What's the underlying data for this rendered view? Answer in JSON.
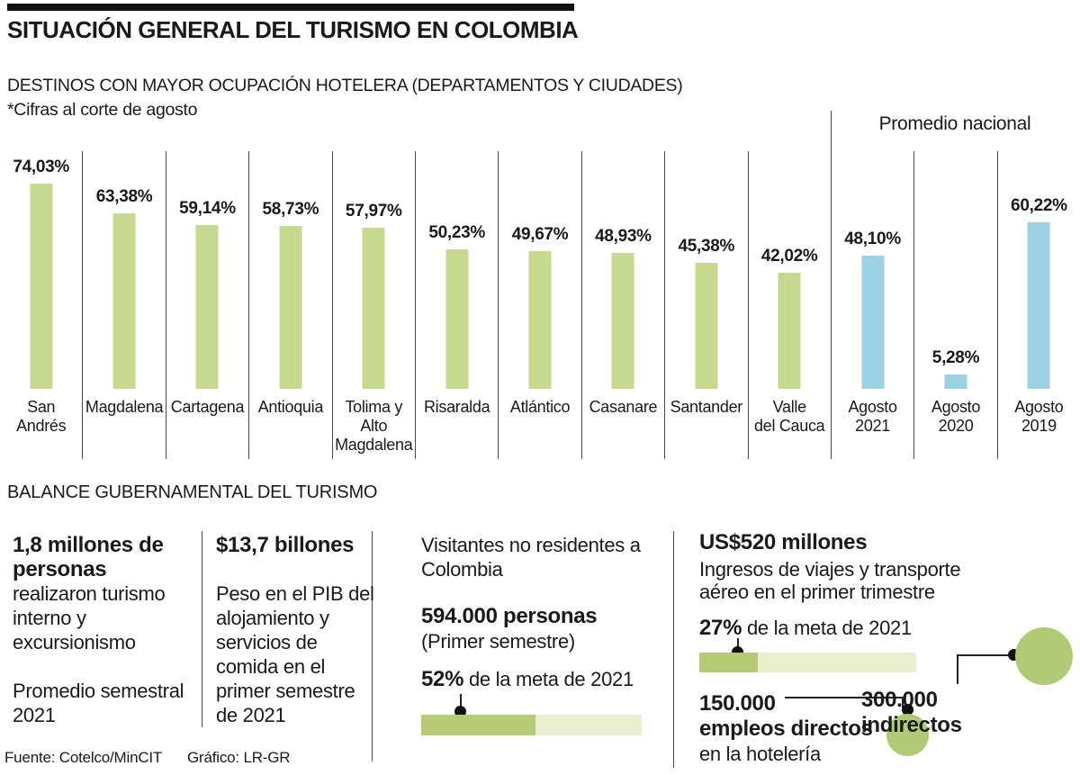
{
  "header": {
    "title": "SITUACIÓN GENERAL DEL TURISMO EN COLOMBIA",
    "subtitle": "DESTINOS CON MAYOR OCUPACIÓN HOTELERA (DEPARTAMENTOS Y CIUDADES)",
    "note": "*Cifras al corte de agosto"
  },
  "chart_data": {
    "type": "bar",
    "unit": "%",
    "ylim": [
      0,
      80
    ],
    "destinations": {
      "categories": [
        [
          "San",
          "Andrés"
        ],
        [
          "Magdalena"
        ],
        [
          "Cartagena"
        ],
        [
          "Antioquia"
        ],
        [
          "Tolima y",
          "Alto",
          "Magdalena"
        ],
        [
          "Risaralda"
        ],
        [
          "Atlántico"
        ],
        [
          "Casanare"
        ],
        [
          "Santander"
        ],
        [
          "Valle",
          "del Cauca"
        ]
      ],
      "values": [
        74.03,
        63.38,
        59.14,
        58.73,
        57.97,
        50.23,
        49.67,
        48.93,
        45.38,
        42.02
      ],
      "labels": [
        "74,03%",
        "63,38%",
        "59,14%",
        "58,73%",
        "57,97%",
        "50,23%",
        "49,67%",
        "48,93%",
        "45,38%",
        "42,02%"
      ]
    },
    "promedio_nacional": {
      "label": "Promedio nacional",
      "categories": [
        [
          "Agosto",
          "2021"
        ],
        [
          "Agosto",
          "2020"
        ],
        [
          "Agosto",
          "2019"
        ]
      ],
      "values": [
        48.1,
        5.28,
        60.22
      ],
      "labels": [
        "48,10%",
        "5,28%",
        "60,22%"
      ]
    }
  },
  "balance": {
    "heading": "BALANCE GUBERNAMENTAL DEL TURISMO",
    "col1": {
      "stat": "1,8 millones de personas",
      "desc": "realizaron turismo interno y excursionismo",
      "period": "Promedio semestral 2021"
    },
    "col2": {
      "stat": "$13,7 billones",
      "desc": "Peso en el PIB del alojamiento y servicios de comida en el primer semestre de 2021"
    },
    "col3": {
      "intro": "Visitantes no residentes a Colombia",
      "stat": "594.000 personas",
      "stat_note": "(Primer semestre)",
      "pct": "52%",
      "pct_label": " de la meta de 2021",
      "pct_value": 52
    },
    "col4": {
      "stat": "US$520 millones",
      "desc": "Ingresos de viajes y transporte aéreo en el primer trimestre",
      "pct": "27%",
      "pct_label": " de la meta de 2021",
      "pct_value": 27,
      "direct": {
        "line1": "150.000",
        "line2": "empleos directos",
        "line3": "en la hotelería"
      },
      "indirect": {
        "line1": "300.000",
        "line2": "indirectos"
      }
    }
  },
  "footer": {
    "source": "Fuente: Cotelco/MinCIT",
    "credit": "Gráfico: LR-GR"
  },
  "colors": {
    "bar_green": "#c7d98e",
    "bar_blue": "#9cd2e5",
    "progress_fill": "#b5cb76",
    "progress_track": "#eaf0cf",
    "circle_green": "#b0cb73",
    "accent_black": "#111111"
  }
}
